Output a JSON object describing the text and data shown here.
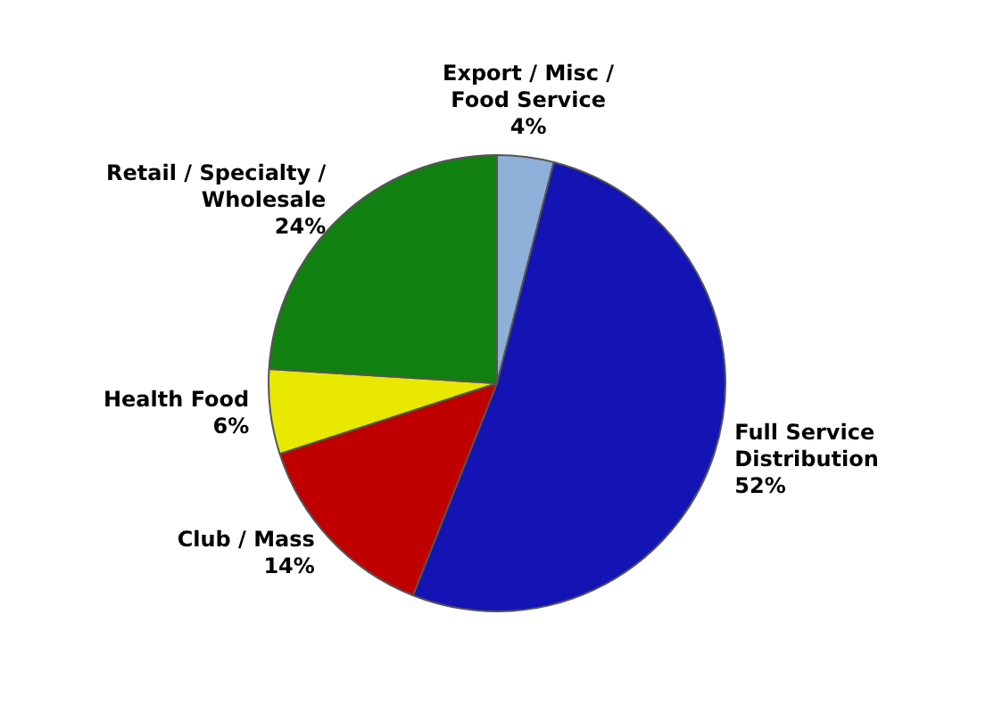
{
  "chart_data": {
    "type": "pie",
    "categories": [
      "Export / Misc / Food Service",
      "Full Service Distribution",
      "Club / Mass",
      "Health Food",
      "Retail / Specialty / Wholesale"
    ],
    "values": [
      4,
      52,
      14,
      6,
      24
    ],
    "colors": [
      "#8fb0d8",
      "#1414b4",
      "#c00000",
      "#e8e800",
      "#108010"
    ],
    "value_labels": [
      "4%",
      "52%",
      "14%",
      "6%",
      "24%"
    ],
    "legend": false
  }
}
